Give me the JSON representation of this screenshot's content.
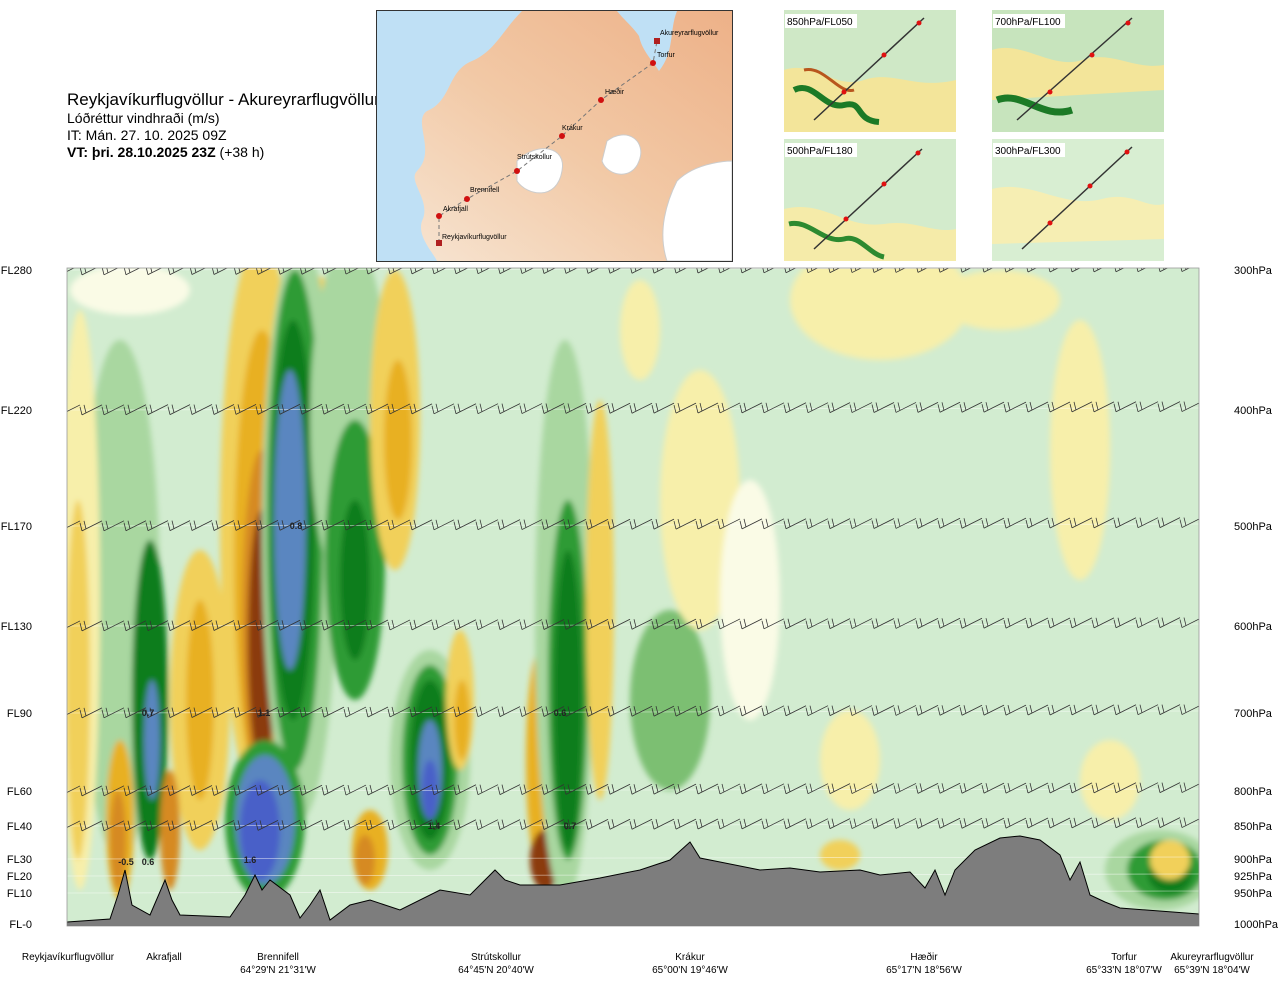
{
  "header": {
    "route_title": "Reykjavíkurflugvöllur - Akureyrarflugvöllur",
    "variable": "Lóðréttur vindhraði (m/s)",
    "issue_time": "IT: Mán. 27. 10. 2025 09Z",
    "valid_prefix": "VT: þri. 28.10.2025 23Z",
    "valid_suffix": " (+38 h)"
  },
  "route_map": {
    "waypoints": [
      {
        "name": "Akureyrarflugvöllur",
        "type": "airport"
      },
      {
        "name": "Torfur",
        "type": "point"
      },
      {
        "name": "Hæðir",
        "type": "point"
      },
      {
        "name": "Krákur",
        "type": "point"
      },
      {
        "name": "Strútskollur",
        "type": "point"
      },
      {
        "name": "Brennifell",
        "type": "point"
      },
      {
        "name": "Akrafjall",
        "type": "point"
      },
      {
        "name": "Reykjavíkurflugvöllur",
        "type": "airport"
      }
    ]
  },
  "insets": [
    {
      "label": "850hPa/FL050"
    },
    {
      "label": "700hPa/FL100"
    },
    {
      "label": "500hPa/FL180"
    },
    {
      "label": "300hPa/FL300"
    }
  ],
  "colors": {
    "strong_up": "#4a60c8",
    "up_blue": "#5a86c0",
    "up_dark_green": "#0b7d1e",
    "up_green": "#2e9b36",
    "up_mid_green": "#7cbf72",
    "up_light_green": "#a9d7a0",
    "weak_green": "#d2ecd0",
    "neutral": "#fafbe6",
    "weak_down": "#f7efaa",
    "down_yellow": "#f1d05a",
    "down_gold": "#e8b021",
    "down_orange": "#d68a22",
    "strong_down": "#8b3a10",
    "terrain": "#7d7d7d"
  },
  "chart_data": {
    "type": "heatmap",
    "title": "Lóðréttur vindhraði (m/s)",
    "xlabel": "",
    "ylabel": "",
    "flight_levels": [
      "FL280",
      "FL220",
      "FL170",
      "FL130",
      "FL90",
      "FL60",
      "FL40",
      "FL30",
      "FL20",
      "FL10",
      "FL-0"
    ],
    "pressure_levels": [
      "300hPa",
      "400hPa",
      "500hPa",
      "600hPa",
      "700hPa",
      "800hPa",
      "850hPa",
      "900hPa",
      "925hPa",
      "950hPa",
      "1000hPa"
    ],
    "route_points": [
      {
        "name": "Reykjavíkurflugvöllur",
        "coord": ""
      },
      {
        "name": "Akrafjall",
        "coord": ""
      },
      {
        "name": "Brennifell",
        "coord": "64°29'N 21°31'W"
      },
      {
        "name": "Strútskollur",
        "coord": "64°45'N 20°40'W"
      },
      {
        "name": "Krákur",
        "coord": "65°00'N 19°46'W"
      },
      {
        "name": "Hæðir",
        "coord": "65°17'N 18°56'W"
      },
      {
        "name": "Torfur",
        "coord": "65°33'N 18°07'W"
      },
      {
        "name": "Akureyrarflugvöllur",
        "coord": "65°39'N 18°04'W"
      }
    ],
    "value_labels": [
      "-0.5",
      "0.6",
      "0.7",
      "1.6",
      "1.1",
      "0.8",
      "1.4",
      "0.6",
      "0.7"
    ],
    "series": [
      {
        "name": "vertical wind extrema (m/s)",
        "values": [
          -0.5,
          0.6,
          0.7,
          1.6,
          1.1,
          0.8,
          1.4,
          0.6,
          0.7
        ]
      }
    ]
  }
}
